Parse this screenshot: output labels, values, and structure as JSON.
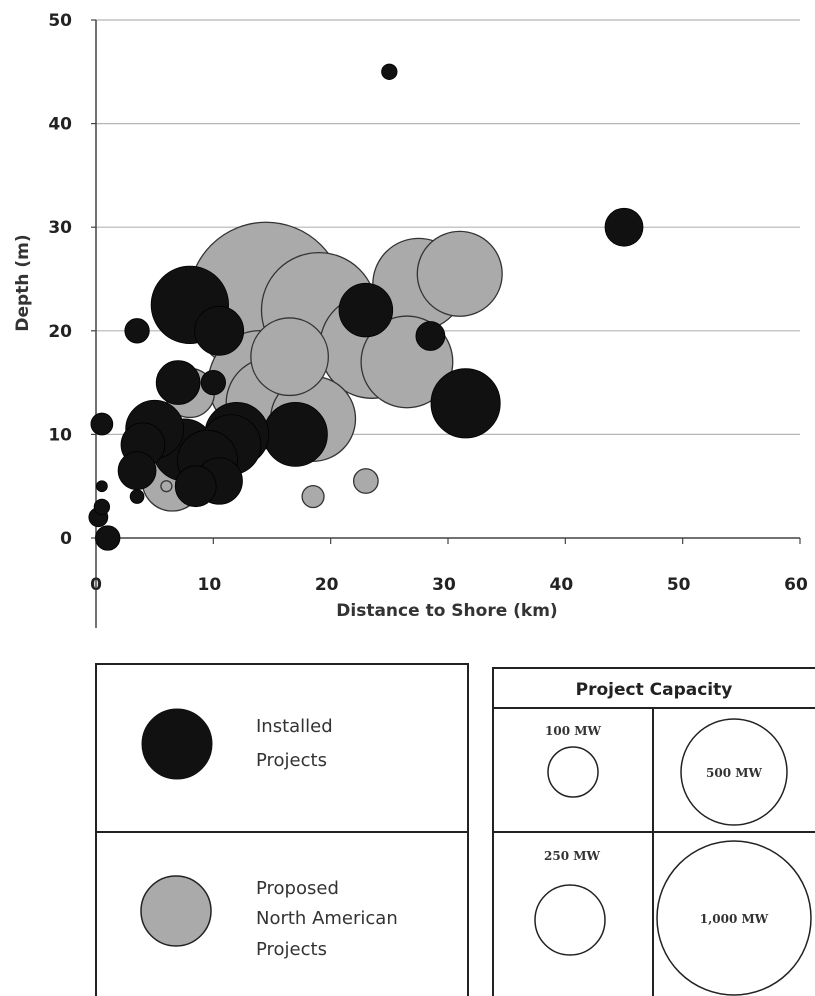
{
  "chart_data": {
    "type": "scatter",
    "xlabel": "Distance to Shore (km)",
    "ylabel": "Depth (m)",
    "xlim": [
      0,
      60
    ],
    "ylim": [
      0,
      50
    ],
    "xticks": [
      "0",
      "10",
      "20",
      "30",
      "40",
      "50",
      "60"
    ],
    "yticks": [
      "0",
      "10",
      "20",
      "30",
      "40",
      "50"
    ],
    "grid": "horizontal",
    "size_variable": "Project Capacity (MW)",
    "series": [
      {
        "name": "Installed Projects",
        "color": "#111111",
        "points": [
          {
            "x": 25,
            "y": 45,
            "mw": 10
          },
          {
            "x": 45,
            "y": 30,
            "mw": 60
          },
          {
            "x": 8,
            "y": 22.5,
            "mw": 250
          },
          {
            "x": 10.5,
            "y": 20,
            "mw": 100
          },
          {
            "x": 3.5,
            "y": 20,
            "mw": 25
          },
          {
            "x": 23,
            "y": 22,
            "mw": 120
          },
          {
            "x": 28.5,
            "y": 19.5,
            "mw": 35
          },
          {
            "x": 7,
            "y": 15,
            "mw": 80
          },
          {
            "x": 10,
            "y": 15,
            "mw": 25
          },
          {
            "x": 31.5,
            "y": 13,
            "mw": 200
          },
          {
            "x": 17,
            "y": 10,
            "mw": 170
          },
          {
            "x": 12,
            "y": 10,
            "mw": 170
          },
          {
            "x": 11.5,
            "y": 9,
            "mw": 150
          },
          {
            "x": 5,
            "y": 10.5,
            "mw": 140
          },
          {
            "x": 7.5,
            "y": 8.5,
            "mw": 160
          },
          {
            "x": 9.5,
            "y": 7.5,
            "mw": 150
          },
          {
            "x": 4,
            "y": 9,
            "mw": 80
          },
          {
            "x": 3.5,
            "y": 6.5,
            "mw": 60
          },
          {
            "x": 10.5,
            "y": 5.5,
            "mw": 90
          },
          {
            "x": 8.5,
            "y": 5,
            "mw": 70
          },
          {
            "x": 0.5,
            "y": 11,
            "mw": 20
          },
          {
            "x": 0.5,
            "y": 5,
            "mw": 5
          },
          {
            "x": 0.5,
            "y": 3,
            "mw": 10
          },
          {
            "x": 0.2,
            "y": 2,
            "mw": 15
          },
          {
            "x": 1,
            "y": 0,
            "mw": 25
          },
          {
            "x": 3.5,
            "y": 4,
            "mw": 8
          }
        ]
      },
      {
        "name": "Proposed North American Projects",
        "color": "#aaaaaa",
        "points": [
          {
            "x": 14.5,
            "y": 23,
            "mw": 1000
          },
          {
            "x": 19,
            "y": 22,
            "mw": 550
          },
          {
            "x": 27.5,
            "y": 24.5,
            "mw": 350
          },
          {
            "x": 31,
            "y": 25.5,
            "mw": 300
          },
          {
            "x": 23.5,
            "y": 18.5,
            "mw": 450
          },
          {
            "x": 26.5,
            "y": 17,
            "mw": 350
          },
          {
            "x": 16.5,
            "y": 17.5,
            "mw": 250
          },
          {
            "x": 14,
            "y": 15,
            "mw": 450
          },
          {
            "x": 15,
            "y": 13,
            "mw": 350
          },
          {
            "x": 18.5,
            "y": 11.5,
            "mw": 300
          },
          {
            "x": 8,
            "y": 14,
            "mw": 100
          },
          {
            "x": 6.5,
            "y": 5.5,
            "mw": 150
          },
          {
            "x": 23,
            "y": 5.5,
            "mw": 25
          },
          {
            "x": 18.5,
            "y": 4,
            "mw": 20
          },
          {
            "x": 6,
            "y": 5,
            "mw": 5
          }
        ]
      }
    ]
  },
  "legend": {
    "installed_label_1": "Installed",
    "installed_label_2": "Projects",
    "proposed_label_1": "Proposed",
    "proposed_label_2": "North American",
    "proposed_label_3": "Projects",
    "capacity_title": "Project Capacity",
    "cap_100": "100 MW",
    "cap_250": "250  MW",
    "cap_500": "500 MW",
    "cap_1000": "1,000 MW"
  }
}
